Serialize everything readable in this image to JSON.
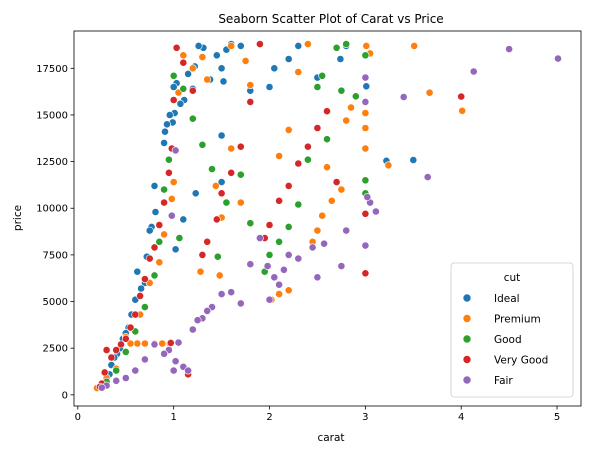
{
  "chart_data": {
    "type": "scatter",
    "title": "Seaborn Scatter Plot of Carat vs Price",
    "xlabel": "carat",
    "ylabel": "price",
    "xlim": [
      -0.04,
      5.25
    ],
    "ylim": [
      -600,
      19500
    ],
    "xticks": [
      0,
      1,
      2,
      3,
      4,
      5
    ],
    "yticks": [
      0,
      2500,
      5000,
      7500,
      10000,
      12500,
      15000,
      17500
    ],
    "grid": false,
    "legend": {
      "title": "cut",
      "position": "lower-right"
    },
    "series": [
      {
        "name": "Ideal",
        "color": "#1f77b4",
        "points": [
          [
            3.22,
            12545
          ],
          [
            3.5,
            12587
          ],
          [
            3.01,
            16538
          ],
          [
            2.8,
            18700
          ],
          [
            2.74,
            18000
          ],
          [
            2.5,
            17000
          ],
          [
            2.3,
            18700
          ],
          [
            2.2,
            18000
          ],
          [
            2.05,
            17500
          ],
          [
            2.0,
            16500
          ],
          [
            1.7,
            18700
          ],
          [
            1.6,
            18800
          ],
          [
            1.55,
            18500
          ],
          [
            1.5,
            17500
          ],
          [
            1.52,
            16800
          ],
          [
            1.45,
            18200
          ],
          [
            1.38,
            16900
          ],
          [
            1.31,
            18600
          ],
          [
            1.26,
            18700
          ],
          [
            1.22,
            17600
          ],
          [
            1.2,
            16400
          ],
          [
            1.15,
            17200
          ],
          [
            1.11,
            15800
          ],
          [
            1.07,
            15600
          ],
          [
            1.03,
            16700
          ],
          [
            1.01,
            15100
          ],
          [
            1.0,
            16500
          ],
          [
            0.99,
            14600
          ],
          [
            0.96,
            15000
          ],
          [
            0.93,
            14500
          ],
          [
            0.91,
            14100
          ],
          [
            0.9,
            13500
          ],
          [
            0.81,
            9800
          ],
          [
            0.8,
            11200
          ],
          [
            0.77,
            9000
          ],
          [
            0.75,
            8800
          ],
          [
            0.72,
            7400
          ],
          [
            0.7,
            6000
          ],
          [
            0.66,
            5700
          ],
          [
            0.62,
            6600
          ],
          [
            0.6,
            5100
          ],
          [
            0.56,
            4300
          ],
          [
            0.53,
            3600
          ],
          [
            0.5,
            3300
          ],
          [
            0.47,
            3000
          ],
          [
            0.44,
            2500
          ],
          [
            0.41,
            2200
          ],
          [
            0.38,
            2000
          ],
          [
            0.35,
            1600
          ],
          [
            0.33,
            1100
          ],
          [
            0.3,
            900
          ],
          [
            0.28,
            600
          ],
          [
            0.25,
            480
          ],
          [
            0.23,
            430
          ],
          [
            1.5,
            11400
          ],
          [
            1.23,
            10800
          ],
          [
            1.1,
            9400
          ],
          [
            1.02,
            7800
          ],
          [
            1.5,
            13900
          ],
          [
            1.8,
            16300
          ]
        ]
      },
      {
        "name": "Premium",
        "color": "#ff7f0e",
        "points": [
          [
            3.51,
            18701
          ],
          [
            4.01,
            15223
          ],
          [
            3.67,
            16193
          ],
          [
            3.01,
            18700
          ],
          [
            3.05,
            18300
          ],
          [
            3.24,
            12300
          ],
          [
            3.0,
            15100
          ],
          [
            3.0,
            14300
          ],
          [
            3.0,
            13200
          ],
          [
            2.85,
            15400
          ],
          [
            2.8,
            14700
          ],
          [
            2.75,
            11000
          ],
          [
            2.65,
            10400
          ],
          [
            2.6,
            12200
          ],
          [
            2.55,
            9600
          ],
          [
            2.5,
            8800
          ],
          [
            2.45,
            8200
          ],
          [
            2.4,
            18800
          ],
          [
            2.3,
            17300
          ],
          [
            2.2,
            14200
          ],
          [
            2.1,
            12800
          ],
          [
            2.02,
            5100
          ],
          [
            2.1,
            5400
          ],
          [
            2.2,
            5600
          ],
          [
            1.9,
            18800
          ],
          [
            1.8,
            16600
          ],
          [
            1.7,
            10300
          ],
          [
            1.6,
            13200
          ],
          [
            1.5,
            9500
          ],
          [
            1.44,
            11200
          ],
          [
            1.35,
            16900
          ],
          [
            1.3,
            18100
          ],
          [
            1.2,
            17500
          ],
          [
            1.1,
            18200
          ],
          [
            1.05,
            16200
          ],
          [
            1.0,
            11400
          ],
          [
            0.96,
            2750
          ],
          [
            0.88,
            2750
          ],
          [
            0.8,
            2750
          ],
          [
            0.7,
            2750
          ],
          [
            0.62,
            2750
          ],
          [
            0.55,
            2750
          ],
          [
            0.98,
            10500
          ],
          [
            0.9,
            8600
          ],
          [
            0.85,
            7100
          ],
          [
            0.75,
            6000
          ],
          [
            0.65,
            4300
          ],
          [
            0.5,
            3100
          ],
          [
            0.4,
            1400
          ],
          [
            0.3,
            900
          ],
          [
            0.25,
            500
          ],
          [
            0.2,
            360
          ],
          [
            1.28,
            6600
          ],
          [
            1.48,
            6400
          ],
          [
            1.6,
            18700
          ],
          [
            1.75,
            17900
          ]
        ]
      },
      {
        "name": "Good",
        "color": "#2ca02c",
        "points": [
          [
            2.8,
            18800
          ],
          [
            2.7,
            18600
          ],
          [
            2.55,
            17100
          ],
          [
            2.5,
            16500
          ],
          [
            3.0,
            18200
          ],
          [
            3.0,
            11500
          ],
          [
            3.0,
            10800
          ],
          [
            2.9,
            16000
          ],
          [
            2.75,
            16300
          ],
          [
            2.6,
            13700
          ],
          [
            2.4,
            12600
          ],
          [
            2.3,
            10200
          ],
          [
            2.2,
            9000
          ],
          [
            2.1,
            8200
          ],
          [
            2.0,
            7500
          ],
          [
            1.95,
            6600
          ],
          [
            1.8,
            9200
          ],
          [
            1.7,
            11800
          ],
          [
            1.55,
            10300
          ],
          [
            1.4,
            12100
          ],
          [
            1.3,
            13400
          ],
          [
            1.2,
            14800
          ],
          [
            1.1,
            16400
          ],
          [
            1.0,
            17100
          ],
          [
            0.95,
            12600
          ],
          [
            0.9,
            11000
          ],
          [
            0.85,
            8200
          ],
          [
            0.8,
            6400
          ],
          [
            0.7,
            4700
          ],
          [
            0.6,
            3400
          ],
          [
            0.5,
            2300
          ],
          [
            0.4,
            1300
          ],
          [
            0.3,
            700
          ],
          [
            1.06,
            8400
          ],
          [
            1.46,
            7400
          ]
        ]
      },
      {
        "name": "Very Good",
        "color": "#d62728",
        "points": [
          [
            4.0,
            15984
          ],
          [
            3.0,
            6512
          ],
          [
            3.0,
            9700
          ],
          [
            2.7,
            11400
          ],
          [
            2.6,
            15200
          ],
          [
            2.5,
            14300
          ],
          [
            2.4,
            13300
          ],
          [
            2.3,
            12400
          ],
          [
            2.2,
            11200
          ],
          [
            2.1,
            10400
          ],
          [
            2.0,
            9100
          ],
          [
            1.95,
            8400
          ],
          [
            1.9,
            18800
          ],
          [
            1.8,
            15700
          ],
          [
            1.7,
            13300
          ],
          [
            1.6,
            11900
          ],
          [
            1.5,
            10800
          ],
          [
            1.45,
            9400
          ],
          [
            1.35,
            8200
          ],
          [
            1.3,
            7500
          ],
          [
            1.2,
            16300
          ],
          [
            1.1,
            17800
          ],
          [
            1.03,
            18600
          ],
          [
            1.0,
            15800
          ],
          [
            0.98,
            13200
          ],
          [
            0.95,
            11900
          ],
          [
            0.9,
            10300
          ],
          [
            0.85,
            9100
          ],
          [
            0.8,
            7900
          ],
          [
            0.75,
            7300
          ],
          [
            0.7,
            6200
          ],
          [
            0.65,
            5300
          ],
          [
            0.6,
            4300
          ],
          [
            0.55,
            3600
          ],
          [
            0.5,
            3000
          ],
          [
            0.45,
            2700
          ],
          [
            0.4,
            2400
          ],
          [
            0.35,
            2000
          ],
          [
            0.3,
            2400
          ],
          [
            0.28,
            1200
          ],
          [
            0.25,
            600
          ],
          [
            0.23,
            430
          ],
          [
            0.97,
            2780
          ],
          [
            1.15,
            1100
          ]
        ]
      },
      {
        "name": "Fair",
        "color": "#9467bd",
        "points": [
          [
            5.01,
            18018
          ],
          [
            4.5,
            18531
          ],
          [
            4.13,
            17329
          ],
          [
            3.65,
            11668
          ],
          [
            3.4,
            15964
          ],
          [
            3.11,
            9823
          ],
          [
            3.05,
            10300
          ],
          [
            3.02,
            10600
          ],
          [
            3.0,
            8000
          ],
          [
            3.0,
            17000
          ],
          [
            3.0,
            15700
          ],
          [
            2.8,
            8800
          ],
          [
            2.75,
            6900
          ],
          [
            2.57,
            8100
          ],
          [
            2.5,
            6300
          ],
          [
            2.45,
            7900
          ],
          [
            2.3,
            7300
          ],
          [
            2.2,
            7500
          ],
          [
            2.15,
            6700
          ],
          [
            2.1,
            5900
          ],
          [
            2.05,
            6300
          ],
          [
            2.0,
            5100
          ],
          [
            1.98,
            6900
          ],
          [
            1.9,
            8400
          ],
          [
            1.8,
            7000
          ],
          [
            1.7,
            4900
          ],
          [
            1.6,
            5500
          ],
          [
            1.5,
            5400
          ],
          [
            1.4,
            4700
          ],
          [
            1.3,
            4100
          ],
          [
            1.2,
            3500
          ],
          [
            1.05,
            2800
          ],
          [
            1.02,
            1800
          ],
          [
            1.0,
            1300
          ],
          [
            1.1,
            1500
          ],
          [
            1.15,
            1300
          ],
          [
            0.95,
            2400
          ],
          [
            0.9,
            2200
          ],
          [
            0.8,
            2700
          ],
          [
            0.7,
            1900
          ],
          [
            0.6,
            1300
          ],
          [
            0.5,
            900
          ],
          [
            0.4,
            750
          ],
          [
            0.3,
            500
          ],
          [
            0.25,
            380
          ],
          [
            1.25,
            4000
          ],
          [
            1.35,
            4500
          ],
          [
            0.98,
            9600
          ],
          [
            1.02,
            13100
          ]
        ]
      }
    ]
  }
}
